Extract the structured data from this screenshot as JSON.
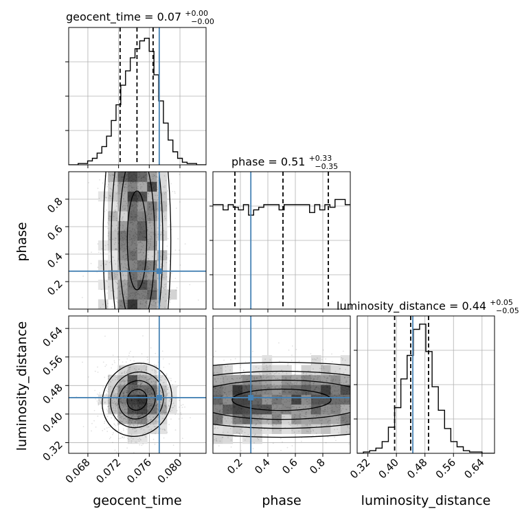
{
  "chart_data": {
    "type": "corner",
    "parameters": [
      "geocent_time",
      "phase",
      "luminosity_distance"
    ],
    "axis_labels": {
      "geocent_time": "geocent_time",
      "phase": "phase",
      "luminosity_distance": "luminosity_distance"
    },
    "titles": {
      "geocent_time": {
        "name": "geocent_time",
        "median": "0.07",
        "plus": "+0.00",
        "minus": "−0.00"
      },
      "phase": {
        "name": "phase",
        "median": "0.51",
        "plus": "+0.33",
        "minus": "−0.35"
      },
      "luminosity_distance": {
        "name": "luminosity_distance",
        "median": "0.44",
        "plus": "+0.05",
        "minus": "−0.05"
      }
    },
    "ranges": {
      "geocent_time": [
        0.0655,
        0.0834
      ],
      "phase": [
        0.0,
        1.0
      ],
      "luminosity_distance": [
        0.29,
        0.675
      ]
    },
    "ticks": {
      "geocent_time": {
        "values": [
          0.068,
          0.072,
          0.076,
          0.08
        ],
        "labels": [
          "0.068",
          "0.072",
          "0.076",
          "0.080"
        ]
      },
      "phase": {
        "values": [
          0.2,
          0.4,
          0.6,
          0.8
        ],
        "labels": [
          "0.2",
          "0.4",
          "0.6",
          "0.8"
        ]
      },
      "luminosity_distance": {
        "values": [
          0.32,
          0.4,
          0.48,
          0.56,
          0.64
        ],
        "labels": [
          "0.32",
          "0.40",
          "0.48",
          "0.56",
          "0.64"
        ]
      }
    },
    "injection_values": {
      "geocent_time": 0.0773,
      "phase": 0.276,
      "luminosity_distance": 0.446
    },
    "quantiles": {
      "geocent_time": [
        0.0722,
        0.0744,
        0.0765
      ],
      "phase": [
        0.16,
        0.51,
        0.84
      ],
      "luminosity_distance": [
        0.395,
        0.44,
        0.49
      ]
    },
    "histograms": {
      "geocent_time": {
        "edges_range": [
          0.0655,
          0.0834
        ],
        "counts": [
          0.0,
          0.0,
          0.01,
          0.01,
          0.03,
          0.05,
          0.09,
          0.14,
          0.22,
          0.34,
          0.46,
          0.61,
          0.72,
          0.82,
          0.89,
          0.95,
          0.97,
          0.87,
          0.69,
          0.49,
          0.32,
          0.19,
          0.1,
          0.05,
          0.02,
          0.01,
          0.01,
          0.0,
          0.0
        ]
      },
      "phase": {
        "edges_range": [
          0.0,
          1.0
        ],
        "counts": [
          0.8,
          0.8,
          0.76,
          0.8,
          0.78,
          0.76,
          0.8,
          0.72,
          0.76,
          0.78,
          0.8,
          0.8,
          0.8,
          0.76,
          0.8,
          0.8,
          0.8,
          0.8,
          0.8,
          0.74,
          0.8,
          0.76,
          0.8,
          0.78,
          0.84,
          0.84,
          0.8
        ]
      },
      "luminosity_distance": {
        "edges_range": [
          0.29,
          0.675
        ],
        "counts": [
          0.0,
          0.01,
          0.02,
          0.04,
          0.09,
          0.2,
          0.35,
          0.57,
          0.75,
          0.95,
          0.99,
          0.78,
          0.51,
          0.33,
          0.19,
          0.09,
          0.05,
          0.02,
          0.01,
          0.01,
          0.0,
          0.0
        ]
      }
    },
    "grid": true,
    "injection_color": "#4682b4",
    "hist_color": "#000000",
    "density_color": "#000000"
  }
}
